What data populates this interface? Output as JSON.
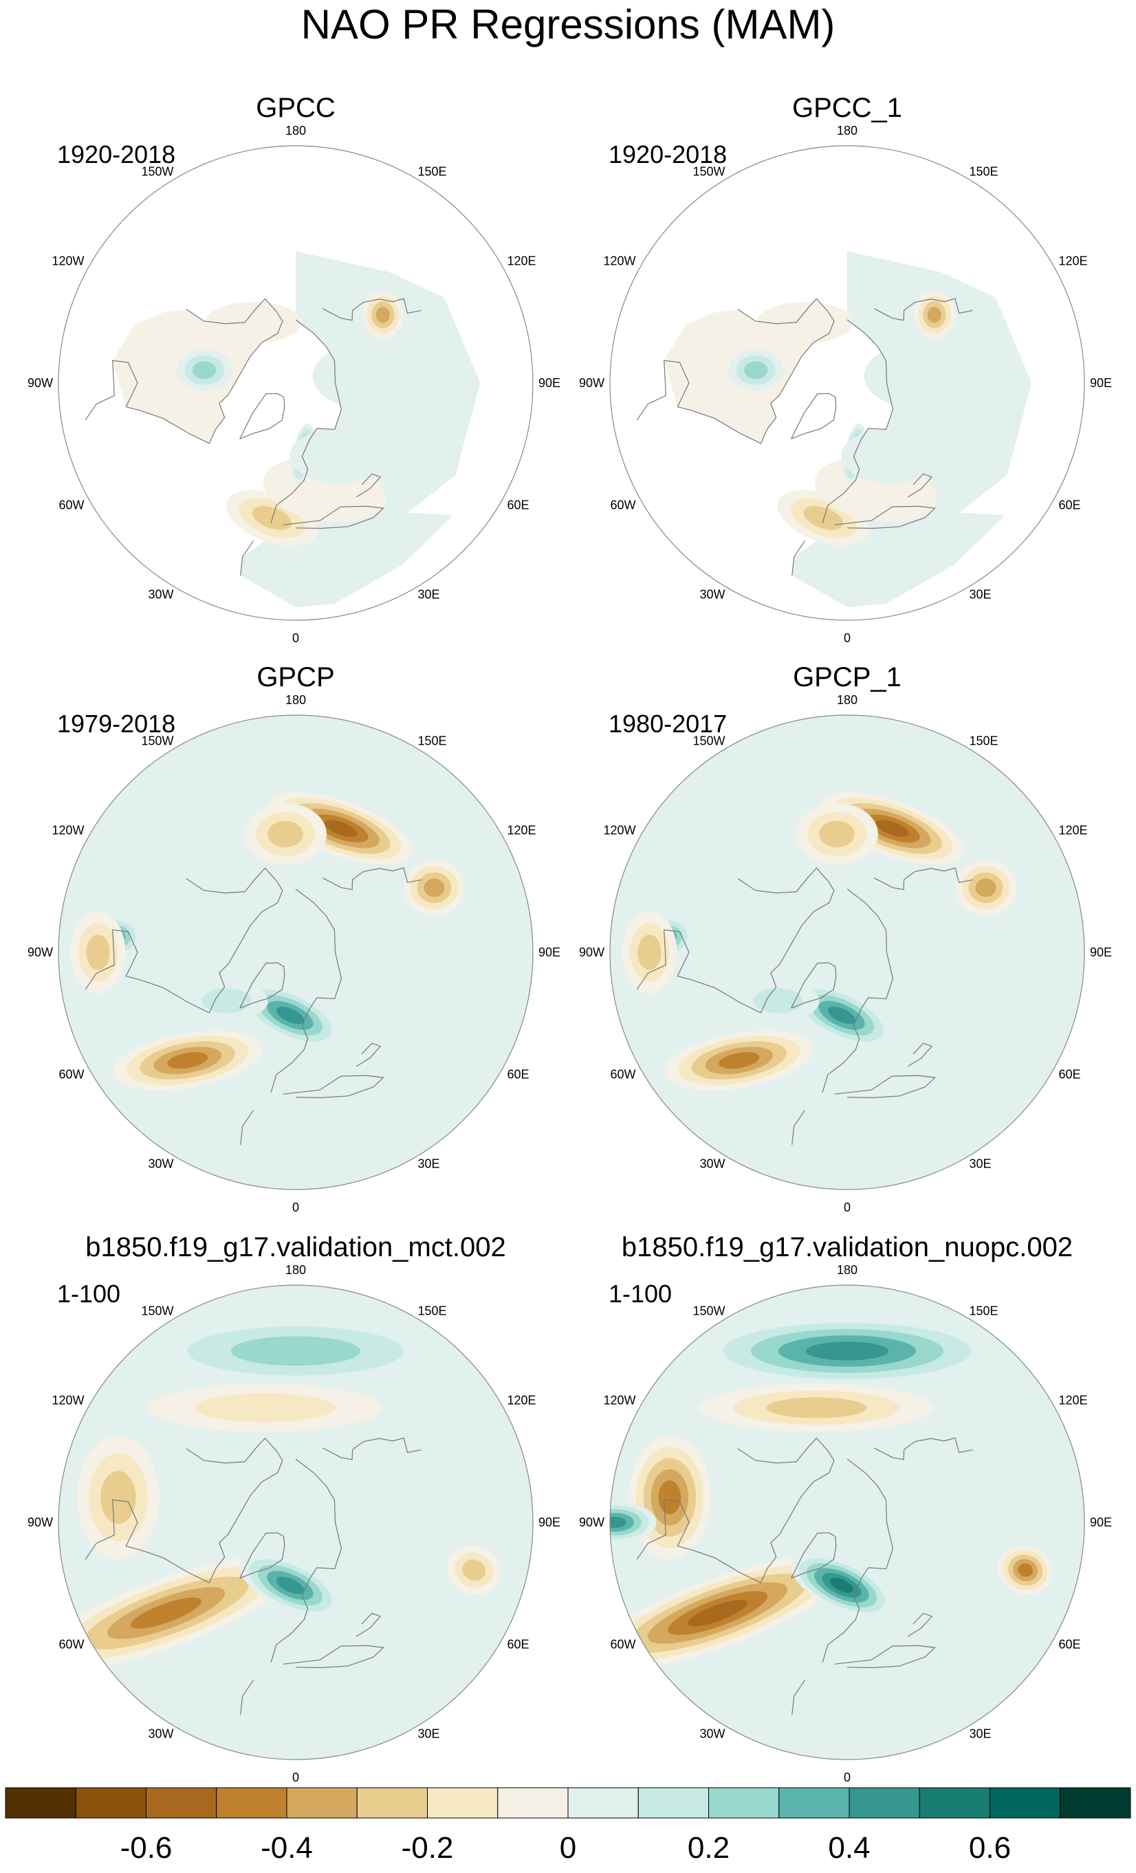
{
  "chart_data": {
    "type": "heatmap",
    "projection": "north-polar-stereographic",
    "title": "NAO PR Regressions (MAM)",
    "longitude_labels": [
      "180",
      "150E",
      "120E",
      "90E",
      "60E",
      "30E",
      "0",
      "30W",
      "60W",
      "90W",
      "120W",
      "150W"
    ],
    "panels": [
      {
        "title": "GPCC",
        "period": "1920-2018",
        "has_land_only_mask": true,
        "regions": [
          {
            "name": "Iberia/Mediterranean",
            "value": -0.3
          },
          {
            "name": "Europe",
            "value": -0.15
          },
          {
            "name": "Norway coast",
            "value": 0.5
          },
          {
            "name": "Northern Europe",
            "value": 0.1
          },
          {
            "name": "Northeast Asia",
            "value": -0.4
          },
          {
            "name": "Alaska/Yukon",
            "value": -0.15
          },
          {
            "name": "Central Canada",
            "value": 0.3
          },
          {
            "name": "Siberia",
            "value": 0.1
          }
        ]
      },
      {
        "title": "GPCC_1",
        "period": "1920-2018",
        "has_land_only_mask": true,
        "regions": [
          {
            "name": "Iberia/Mediterranean",
            "value": -0.3
          },
          {
            "name": "Europe",
            "value": -0.15
          },
          {
            "name": "Norway coast",
            "value": 0.5
          },
          {
            "name": "Northern Europe",
            "value": 0.1
          },
          {
            "name": "Northeast Asia",
            "value": -0.4
          },
          {
            "name": "Alaska/Yukon",
            "value": -0.15
          },
          {
            "name": "Central Canada",
            "value": 0.3
          },
          {
            "name": "Siberia",
            "value": 0.1
          }
        ]
      },
      {
        "title": "GPCP",
        "period": "1979-2018",
        "has_land_only_mask": false,
        "regions": [
          {
            "name": "Subtropical North Atlantic",
            "value": -0.5
          },
          {
            "name": "Iceland/Norwegian Sea",
            "value": 0.5
          },
          {
            "name": "Labrador Sea",
            "value": 0.2
          },
          {
            "name": "North Pacific",
            "value": -0.55
          },
          {
            "name": "East Asia",
            "value": -0.4
          },
          {
            "name": "Central America",
            "value": 0.4
          },
          {
            "name": "Mexico/Gulf",
            "value": -0.3
          },
          {
            "name": "Bering Sea",
            "value": -0.3
          }
        ]
      },
      {
        "title": "GPCP_1",
        "period": "1980-2017",
        "has_land_only_mask": false,
        "regions": [
          {
            "name": "Subtropical North Atlantic",
            "value": -0.5
          },
          {
            "name": "Iceland/Norwegian Sea",
            "value": 0.5
          },
          {
            "name": "Labrador Sea",
            "value": 0.2
          },
          {
            "name": "North Pacific",
            "value": -0.55
          },
          {
            "name": "East Asia",
            "value": -0.4
          },
          {
            "name": "Central America",
            "value": 0.4
          },
          {
            "name": "Mexico/Gulf",
            "value": -0.3
          },
          {
            "name": "Bering Sea",
            "value": -0.3
          }
        ]
      },
      {
        "title": "b1850.f19_g17.validation_mct.002",
        "period": "1-100",
        "has_land_only_mask": false,
        "regions": [
          {
            "name": "Subtropical Atlantic band",
            "value": -0.45
          },
          {
            "name": "Iceland/Norwegian Sea",
            "value": 0.5
          },
          {
            "name": "Pacific high latitudes",
            "value": 0.3
          },
          {
            "name": "North Pacific band",
            "value": -0.2
          },
          {
            "name": "Eastern Pacific subtropics",
            "value": -0.35
          },
          {
            "name": "Arabian Sea",
            "value": -0.3
          }
        ]
      },
      {
        "title": "b1850.f19_g17.validation_nuopc.002",
        "period": "1-100",
        "has_land_only_mask": false,
        "regions": [
          {
            "name": "Subtropical Atlantic band",
            "value": -0.55
          },
          {
            "name": "Iceland/Norwegian Sea",
            "value": 0.55
          },
          {
            "name": "Pacific high latitudes",
            "value": 0.5
          },
          {
            "name": "North Pacific band",
            "value": -0.25
          },
          {
            "name": "Eastern Pacific subtropics",
            "value": -0.5
          },
          {
            "name": "Arabian Sea",
            "value": -0.45
          },
          {
            "name": "Tropical east Pacific",
            "value": 0.5
          }
        ]
      }
    ],
    "colorbar": {
      "levels": [
        -0.7,
        -0.6,
        -0.5,
        -0.4,
        -0.3,
        -0.2,
        -0.1,
        0,
        0.1,
        0.2,
        0.3,
        0.4,
        0.5,
        0.6,
        0.7
      ],
      "tick_labels": [
        "-0.6",
        "-0.4",
        "-0.2",
        "0",
        "0.2",
        "0.4",
        "0.6"
      ],
      "colors": [
        "#543005",
        "#8c510a",
        "#a8691f",
        "#bf812d",
        "#d4a85e",
        "#e8cd8f",
        "#f6e8c3",
        "#f5f1e6",
        "#e2f0ee",
        "#c7eae5",
        "#99d8cc",
        "#5ab4ac",
        "#35978f",
        "#1a7d72",
        "#01665e",
        "#003c30"
      ]
    }
  }
}
